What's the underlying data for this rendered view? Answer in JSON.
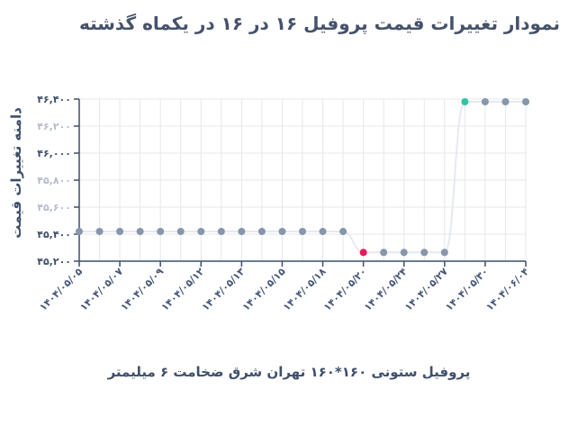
{
  "chart_data": {
    "type": "line",
    "title": "نمودار تغییرات قیمت پروفیل ۱۶ در ۱۶ در یکماه گذشته",
    "ylabel": "دامنه تغییرات قیمت",
    "xlabel": "پروفیل ستونی ۱۶۰*۱۶۰ تهران شرق ضخامت ۶ میلیمتر",
    "ylim": [
      45200,
      46400
    ],
    "yticks": [
      45200,
      45400,
      45600,
      45800,
      46000,
      46200,
      46400
    ],
    "ytick_labels": [
      "۴۵,۲۰۰",
      "۴۵,۴۰۰",
      "۴۵,۶۰۰",
      "۴۵,۸۰۰",
      "۴۶,۰۰۰",
      "۴۶,۲۰۰",
      "۴۶,۴۰۰"
    ],
    "ytick_faded": [
      false,
      false,
      true,
      true,
      false,
      true,
      false
    ],
    "xtick_labels": [
      "۱۴۰۴/۰۵/۰۵",
      "۱۴۰۴/۰۵/۰۷",
      "۱۴۰۴/۰۵/۰۹",
      "۱۴۰۴/۰۵/۱۲",
      "۱۴۰۴/۰۵/۱۳",
      "۱۴۰۴/۰۵/۱۵",
      "۱۴۰۴/۰۵/۱۸",
      "۱۴۰۴/۰۵/۲۰",
      "۱۴۰۴/۰۵/۲۴",
      "۱۴۰۴/۰۵/۲۷",
      "۱۴۰۴/۰۵/۳۰",
      "۱۴۰۴/۰۶/۰۴"
    ],
    "series": [
      {
        "values": [
          45420,
          45420,
          45420,
          45420,
          45420,
          45420,
          45420,
          45420,
          45420,
          45420,
          45420,
          45420,
          45420,
          45420,
          45265,
          45265,
          45265,
          45265,
          45265,
          46380,
          46380,
          46380,
          46380
        ],
        "highlight": {
          "14": "min",
          "19": "max"
        }
      }
    ],
    "colors": {
      "line": "#e6e9f0",
      "point": "#8796ab",
      "min_point": "#e8195b",
      "max_point": "#2fc6a3",
      "grid": "#e6e7ea",
      "axis": "#3f4f6b"
    },
    "grid": true,
    "legend": "none"
  }
}
